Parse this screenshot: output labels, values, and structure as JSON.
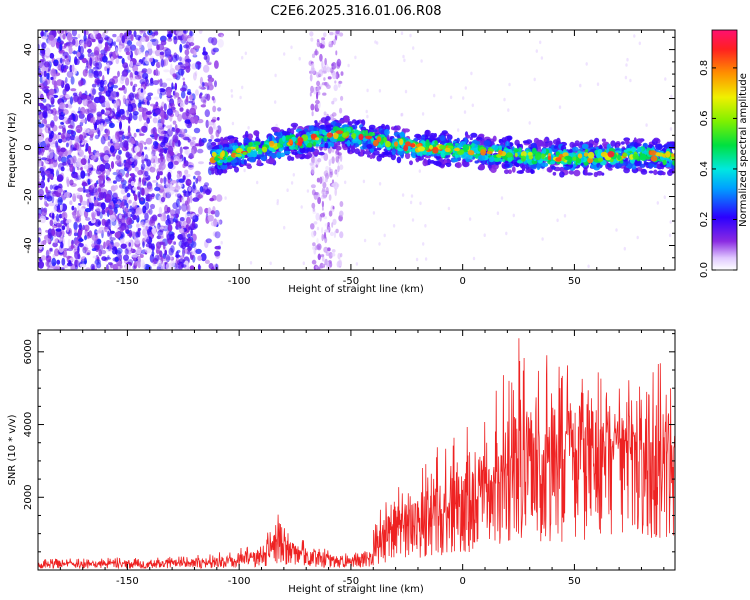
{
  "chart_data": [
    {
      "type": "heatmap",
      "title": "C2E6.2025.316.01.06.R08",
      "xlabel": "Height of straight line (km)",
      "ylabel": "Frequency (Hz)",
      "xlim": [
        -190,
        95
      ],
      "ylim": [
        -50,
        48
      ],
      "xticks": [
        -150,
        -100,
        -50,
        0,
        50
      ],
      "yticks": [
        -40,
        -20,
        0,
        20,
        40
      ],
      "colorbar": {
        "label": "Normalized spectral amplitude",
        "range": [
          0.0,
          0.95
        ],
        "ticks": [
          0.0,
          0.2,
          0.4,
          0.6,
          0.8
        ]
      },
      "ridge": {
        "description_points_km_hz": [
          [
            -110,
            -4
          ],
          [
            -90,
            0
          ],
          [
            -70,
            3
          ],
          [
            -55,
            6
          ],
          [
            -40,
            3
          ],
          [
            -20,
            0
          ],
          [
            0,
            -1
          ],
          [
            20,
            -3
          ],
          [
            40,
            -4
          ],
          [
            60,
            -4
          ],
          [
            80,
            -3
          ],
          [
            95,
            -4
          ]
        ]
      }
    },
    {
      "type": "line",
      "xlabel": "Height of straight line (km)",
      "ylabel": "SNR (10 * v/v)",
      "xlim": [
        -190,
        95
      ],
      "ylim": [
        0,
        6600
      ],
      "xticks": [
        -150,
        -100,
        -50,
        0,
        50
      ],
      "yticks": [
        2000,
        4000,
        6000
      ],
      "color": "#ee2222",
      "envelope": {
        "x": [
          -190,
          -150,
          -120,
          -100,
          -90,
          -82,
          -75,
          -60,
          -50,
          -42,
          -38,
          -30,
          -20,
          -10,
          0,
          10,
          20,
          25,
          30,
          40,
          50,
          60,
          70,
          80,
          90,
          95
        ],
        "mean": [
          150,
          150,
          180,
          250,
          350,
          700,
          450,
          280,
          220,
          250,
          600,
          1100,
          1200,
          1500,
          1800,
          2100,
          2500,
          3400,
          2800,
          2900,
          3200,
          3300,
          3300,
          3300,
          3200,
          3200
        ],
        "peak": [
          300,
          350,
          400,
          600,
          800,
          1600,
          900,
          600,
          500,
          550,
          1700,
          2400,
          2800,
          3500,
          3900,
          4400,
          5600,
          6600,
          6300,
          5800,
          5600,
          5500,
          5300,
          5200,
          6000,
          5400
        ]
      }
    }
  ]
}
